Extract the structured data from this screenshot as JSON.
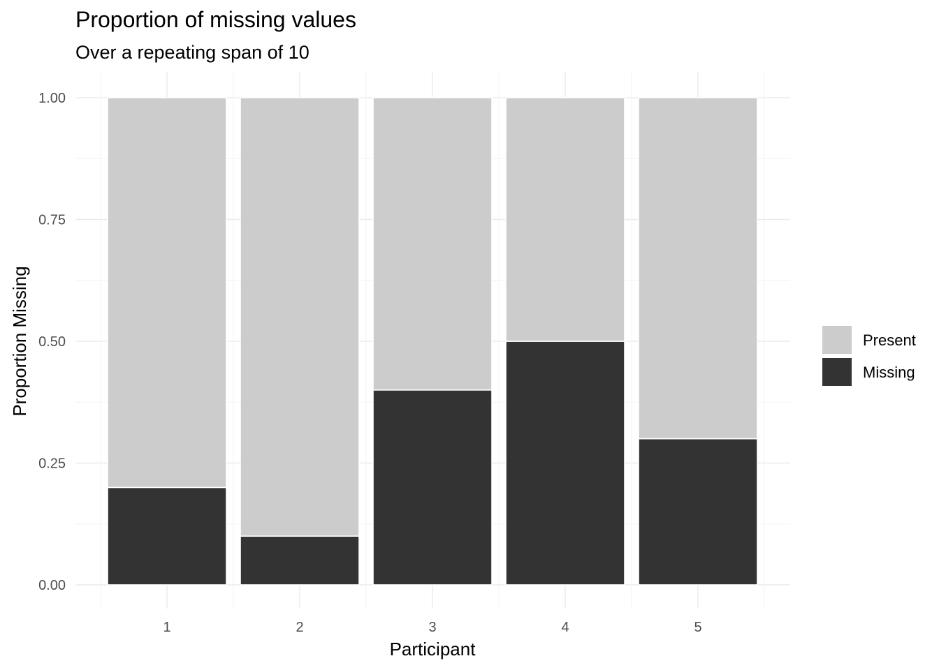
{
  "chart_data": {
    "type": "bar",
    "stacked": true,
    "title": "Proportion of missing values",
    "subtitle": "Over a repeating span of 10",
    "xlabel": "Participant",
    "ylabel": "Proportion Missing",
    "ylim": [
      0,
      1
    ],
    "y_ticks": [
      "0.00",
      "0.25",
      "0.50",
      "0.75",
      "1.00"
    ],
    "y_tick_values": [
      0,
      0.25,
      0.5,
      0.75,
      1.0
    ],
    "categories": [
      "1",
      "2",
      "3",
      "4",
      "5"
    ],
    "series": [
      {
        "name": "Missing",
        "color": "#333333",
        "values": [
          0.2,
          0.1,
          0.4,
          0.5,
          0.3
        ]
      },
      {
        "name": "Present",
        "color": "#cccccc",
        "values": [
          0.8,
          0.9,
          0.6,
          0.5,
          0.7
        ]
      }
    ],
    "legend": {
      "position": "right",
      "items": [
        {
          "label": "Present",
          "color": "#cccccc"
        },
        {
          "label": "Missing",
          "color": "#333333"
        }
      ]
    },
    "grid": true
  }
}
